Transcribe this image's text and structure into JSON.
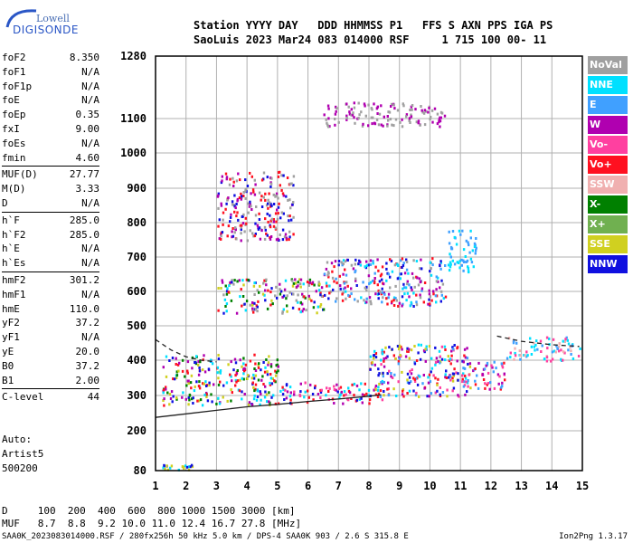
{
  "logo": {
    "line1": "Lowell",
    "line2": "DIGISONDE"
  },
  "header": {
    "row1": "Station YYYY DAY   DDD HHMMSS P1   FFS S AXN PPS IGA PS",
    "row2": "SaoLuis 2023 Mar24 083 014000 RSF     1 715 100 00- 11"
  },
  "params": {
    "group1": [
      {
        "name": "foF2",
        "value": "8.350"
      },
      {
        "name": "foF1",
        "value": "N/A"
      },
      {
        "name": "foF1p",
        "value": "N/A"
      },
      {
        "name": "foE",
        "value": "N/A"
      },
      {
        "name": "foEp",
        "value": "0.35"
      },
      {
        "name": "fxI",
        "value": "9.00"
      },
      {
        "name": "foEs",
        "value": "N/A"
      },
      {
        "name": "fmin",
        "value": "4.60"
      }
    ],
    "group2": [
      {
        "name": "MUF(D)",
        "value": "27.77"
      },
      {
        "name": "M(D)",
        "value": "3.33"
      },
      {
        "name": "D",
        "value": "N/A"
      }
    ],
    "group3": [
      {
        "name": "h`F",
        "value": "285.0"
      },
      {
        "name": "h`F2",
        "value": "285.0"
      },
      {
        "name": "h`E",
        "value": "N/A"
      },
      {
        "name": "h`Es",
        "value": "N/A"
      }
    ],
    "group4": [
      {
        "name": "hmF2",
        "value": "301.2"
      },
      {
        "name": "hmF1",
        "value": "N/A"
      },
      {
        "name": "hmE",
        "value": "110.0"
      },
      {
        "name": "yF2",
        "value": "37.2"
      },
      {
        "name": "yF1",
        "value": "N/A"
      },
      {
        "name": "yE",
        "value": "20.0"
      },
      {
        "name": "B0",
        "value": "37.2"
      },
      {
        "name": "B1",
        "value": "2.00"
      }
    ],
    "group5": [
      {
        "name": "C-level",
        "value": "44"
      }
    ]
  },
  "auto": {
    "line1": "Auto:",
    "line2": "Artist5",
    "line3": "500200"
  },
  "muf_table": {
    "row1": "D     100  200  400  600  800 1000 1500 3000 [km]",
    "row2": "MUF   8.7  8.8  9.2 10.0 11.0 12.4 16.7 27.8 [MHz]"
  },
  "footer": {
    "left": "SAA0K_2023083014000.RSF / 280fx256h 50 kHz 5.0 km / DPS-4 SAA0K 903 / 2.6 S 315.8 E",
    "right": "Ion2Png 1.3.17"
  },
  "legend": [
    {
      "label": "NoVal",
      "color": "#a0a0a0"
    },
    {
      "label": "NNE",
      "color": "#00e0ff"
    },
    {
      "label": "E",
      "color": "#40a0ff"
    },
    {
      "label": "W",
      "color": "#b000b0"
    },
    {
      "label": "Vo-",
      "color": "#ff40a0"
    },
    {
      "label": "Vo+",
      "color": "#ff1020"
    },
    {
      "label": "SSW",
      "color": "#f0b0b0"
    },
    {
      "label": "X-",
      "color": "#008000"
    },
    {
      "label": "X+",
      "color": "#70b050"
    },
    {
      "label": "SSE",
      "color": "#d0d020"
    },
    {
      "label": "NNW",
      "color": "#1010e0"
    }
  ],
  "chart_data": {
    "type": "scatter",
    "xlim": [
      1,
      15
    ],
    "ylim": [
      80,
      1280
    ],
    "x_ticks": [
      "1",
      "2",
      "3",
      "4",
      "5",
      "6",
      "7",
      "8",
      "9",
      "10",
      "11",
      "12",
      "13",
      "14",
      "15"
    ],
    "y_ticks": [
      "80",
      "200",
      "300",
      "400",
      "500",
      "600",
      "700",
      "800",
      "900",
      "1000",
      "1100",
      "1280"
    ],
    "grid": true,
    "traces": [
      {
        "x": [
          1.0,
          2.0,
          3.0,
          4.0,
          5.0,
          6.0,
          7.0,
          8.0,
          8.4
        ],
        "y": [
          238,
          248,
          258,
          268,
          275,
          283,
          290,
          298,
          302
        ],
        "style": "solid"
      },
      {
        "x": [
          1.0,
          1.5,
          2.0,
          2.5,
          3.0
        ],
        "y": [
          460,
          430,
          410,
          400,
          395
        ],
        "style": "dashed"
      },
      {
        "x": [
          12.2,
          13.0,
          14.0,
          14.9
        ],
        "y": [
          470,
          455,
          445,
          440
        ],
        "style": "dashed"
      }
    ],
    "echo_regions": [
      {
        "x": [
          1.2,
          5.0
        ],
        "y": [
          275,
          420
        ],
        "colors": [
          "#1010e0",
          "#b000b0",
          "#ff1020",
          "#00e0ff",
          "#008000",
          "#d0d020"
        ]
      },
      {
        "x": [
          5.0,
          8.5
        ],
        "y": [
          280,
          340
        ],
        "colors": [
          "#ff1020",
          "#1010e0",
          "#b000b0",
          "#ff40a0",
          "#00e0ff"
        ]
      },
      {
        "x": [
          8.0,
          11.3
        ],
        "y": [
          300,
          450
        ],
        "colors": [
          "#ff1020",
          "#1010e0",
          "#00e0ff",
          "#b000b0",
          "#ff40a0",
          "#d0d020",
          "#40a0ff"
        ]
      },
      {
        "x": [
          11.0,
          12.5
        ],
        "y": [
          320,
          400
        ],
        "colors": [
          "#ff1020",
          "#ff40a0",
          "#b000b0",
          "#40a0ff"
        ]
      },
      {
        "x": [
          12.5,
          14.9
        ],
        "y": [
          400,
          470
        ],
        "colors": [
          "#00e0ff",
          "#40a0ff",
          "#ff40a0",
          "#f0b0b0"
        ]
      },
      {
        "x": [
          3.0,
          6.5
        ],
        "y": [
          540,
          640
        ],
        "colors": [
          "#b000b0",
          "#1010e0",
          "#ff1020",
          "#008000",
          "#00e0ff",
          "#d0d020",
          "#a0a0a0"
        ]
      },
      {
        "x": [
          6.5,
          10.5
        ],
        "y": [
          560,
          700
        ],
        "colors": [
          "#b000b0",
          "#ff1020",
          "#00e0ff",
          "#1010e0",
          "#40a0ff",
          "#a0a0a0"
        ]
      },
      {
        "x": [
          10.5,
          11.5
        ],
        "y": [
          660,
          780
        ],
        "colors": [
          "#00e0ff",
          "#40a0ff"
        ]
      },
      {
        "x": [
          3.0,
          5.5
        ],
        "y": [
          750,
          950
        ],
        "colors": [
          "#ff1020",
          "#b000b0",
          "#1010e0",
          "#a0a0a0"
        ]
      },
      {
        "x": [
          1.2,
          2.2
        ],
        "y": [
          85,
          100
        ],
        "colors": [
          "#1010e0",
          "#d0d020",
          "#00e0ff"
        ]
      },
      {
        "x": [
          6.5,
          10.5
        ],
        "y": [
          1080,
          1150
        ],
        "colors": [
          "#a0a0a0",
          "#b000b0"
        ]
      }
    ]
  }
}
